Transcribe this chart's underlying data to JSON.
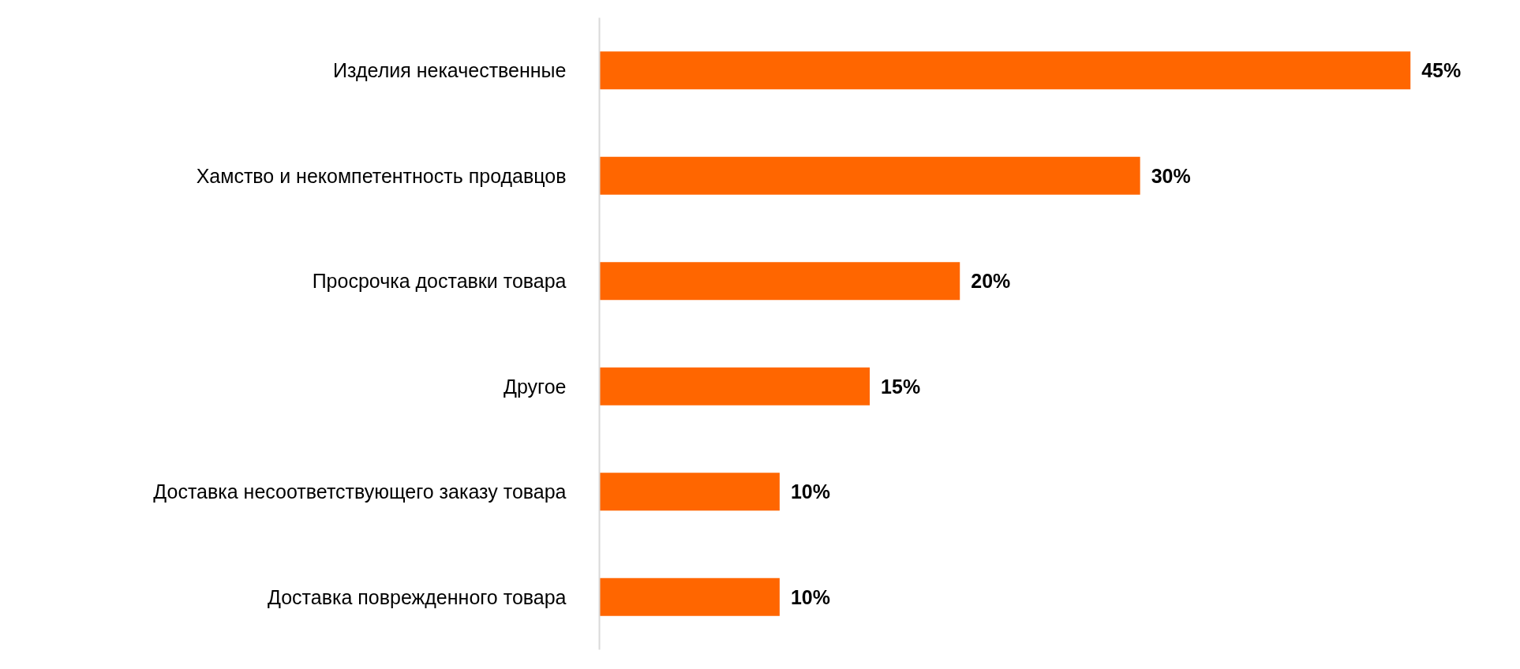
{
  "chart_data": {
    "type": "bar",
    "orientation": "horizontal",
    "categories": [
      "Изделия некачественные",
      "Хамство и некомпетентность продавцов",
      "Просрочка доставки товара",
      "Другое",
      "Доставка несоответствующего заказу товара",
      "Доставка поврежденного товара"
    ],
    "values": [
      45,
      30,
      20,
      15,
      10,
      10
    ],
    "value_labels": [
      "45%",
      "30%",
      "20%",
      "15%",
      "10%",
      "10%"
    ],
    "color": "#ff6600",
    "grid": false
  }
}
